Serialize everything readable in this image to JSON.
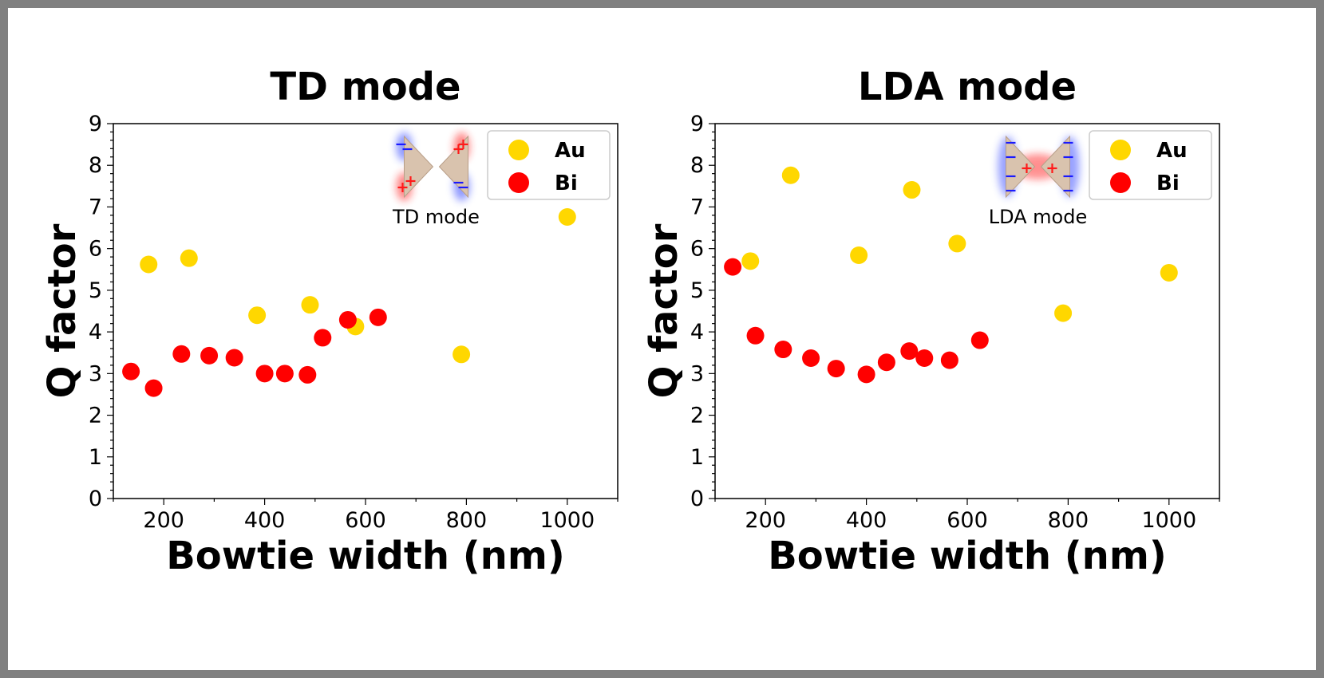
{
  "chart_data": [
    {
      "type": "scatter",
      "title": "TD mode",
      "xlabel": "Bowtie width (nm)",
      "ylabel": "Q factor",
      "xlim": [
        100,
        1100
      ],
      "ylim": [
        0,
        9
      ],
      "x_ticks": [
        200,
        400,
        600,
        800,
        1000
      ],
      "y_ticks": [
        0,
        1,
        2,
        3,
        4,
        5,
        6,
        7,
        8,
        9
      ],
      "legend": "top-right",
      "grid": false,
      "inset_caption": "TD mode",
      "series": [
        {
          "name": "Au",
          "color": "#FFD700",
          "x": [
            170,
            250,
            385,
            490,
            580,
            790,
            1000
          ],
          "y": [
            5.62,
            5.77,
            4.4,
            4.65,
            4.13,
            3.46,
            6.76
          ]
        },
        {
          "name": "Bi",
          "color": "#FF0000",
          "x": [
            135,
            180,
            235,
            290,
            340,
            400,
            440,
            485,
            515,
            565,
            625
          ],
          "y": [
            3.05,
            2.65,
            3.47,
            3.43,
            3.38,
            3.0,
            3.0,
            2.97,
            3.86,
            4.29,
            4.35
          ]
        }
      ]
    },
    {
      "type": "scatter",
      "title": "LDA mode",
      "xlabel": "Bowtie width (nm)",
      "ylabel": "Q factor",
      "xlim": [
        100,
        1100
      ],
      "ylim": [
        0,
        9
      ],
      "x_ticks": [
        200,
        400,
        600,
        800,
        1000
      ],
      "y_ticks": [
        0,
        1,
        2,
        3,
        4,
        5,
        6,
        7,
        8,
        9
      ],
      "legend": "top-right",
      "grid": false,
      "inset_caption": "LDA mode",
      "series": [
        {
          "name": "Au",
          "color": "#FFD700",
          "x": [
            170,
            250,
            385,
            490,
            580,
            790,
            1000
          ],
          "y": [
            5.7,
            7.76,
            5.84,
            7.41,
            6.12,
            4.45,
            5.42
          ]
        },
        {
          "name": "Bi",
          "color": "#FF0000",
          "x": [
            135,
            180,
            235,
            290,
            340,
            400,
            440,
            485,
            515,
            565,
            625
          ],
          "y": [
            5.56,
            3.91,
            3.58,
            3.37,
            3.12,
            2.98,
            3.27,
            3.54,
            3.37,
            3.32,
            3.8
          ]
        }
      ]
    }
  ]
}
